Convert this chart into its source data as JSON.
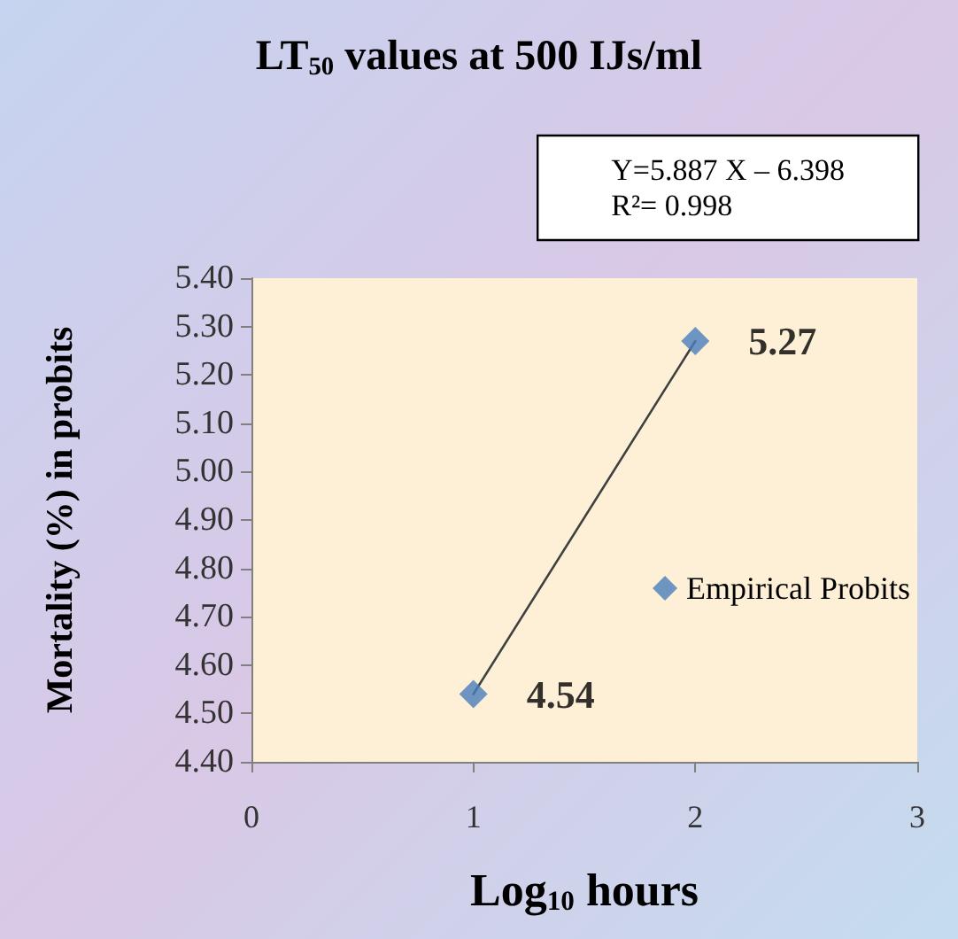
{
  "chart_data": {
    "type": "scatter",
    "title": "LT$_{50}$ values at 500 IJs/ml",
    "xlabel": "Log$_{10}$ hours",
    "ylabel": "Mortality (%) in probits",
    "annotations": [
      "Y=5.887 X – 6.398\nR²= 0.998"
    ],
    "x": [
      1,
      2
    ],
    "series": [
      {
        "name": "Empirical Probits",
        "color": "#4a7ebb",
        "values": [
          4.54,
          5.27
        ],
        "value_labels": [
          "4.54",
          "5.27"
        ]
      },
      {
        "type": "line",
        "x": [
          1,
          2
        ],
        "values": [
          4.54,
          5.27
        ],
        "color": "#404040",
        "marker": "none"
      }
    ],
    "xlim": [
      0,
      3
    ],
    "xticks": [
      0,
      1,
      2,
      3
    ],
    "ylim": [
      4.4,
      5.4
    ],
    "yticks": [
      {
        "value": 4.4,
        "label": "4.40"
      },
      {
        "value": 4.5,
        "label": "4.50"
      },
      {
        "value": 4.6,
        "label": "4.60"
      },
      {
        "value": 4.7,
        "label": "4.70"
      },
      {
        "value": 4.8,
        "label": "4.80"
      },
      {
        "value": 4.9,
        "label": "4.90"
      },
      {
        "value": 5,
        "label": "5.00"
      },
      {
        "value": 5.1,
        "label": "5.10"
      },
      {
        "value": 5.2,
        "label": "5.20"
      },
      {
        "value": 5.3,
        "label": "5.30"
      },
      {
        "value": 5.4,
        "label": "5.40"
      }
    ],
    "marker": "diamond",
    "legend": "right",
    "grid": false
  }
}
